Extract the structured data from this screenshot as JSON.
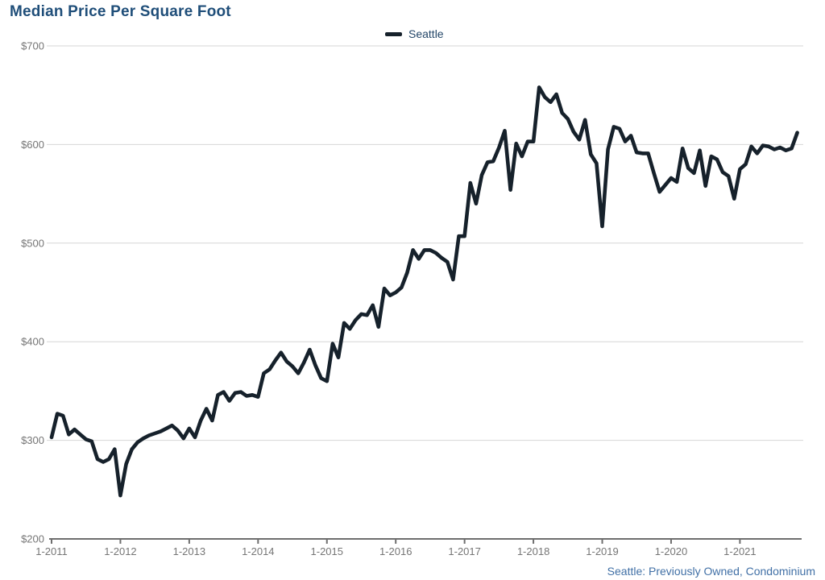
{
  "title": "Median Price Per Square Foot",
  "legend": {
    "label": "Seattle"
  },
  "source_note": "Seattle: Previously Owned, Condominium",
  "colors": {
    "title": "#1f4e79",
    "series_line": "#16212b",
    "gridline": "#d6d6d6",
    "axis": "#6e6e6e",
    "axis_label": "#757575",
    "source_note": "#4170a6",
    "background": "#ffffff"
  },
  "chart_data": {
    "type": "line",
    "title": "Median Price Per Square Foot",
    "frequency": "monthly",
    "x_start": "1-2011",
    "x_end": "11-2021",
    "x_tick_labels": [
      "1-2011",
      "1-2012",
      "1-2013",
      "1-2014",
      "1-2015",
      "1-2016",
      "1-2017",
      "1-2018",
      "1-2019",
      "1-2020",
      "1-2021"
    ],
    "y_tick_labels": [
      "$200",
      "$300",
      "$400",
      "$500",
      "$600",
      "$700"
    ],
    "ylim": [
      200,
      700
    ],
    "y_tick_step": 100,
    "grid": "horizontal",
    "legend_position": "top-center",
    "series": [
      {
        "name": "Seattle",
        "color": "#16212b",
        "values": [
          303,
          327,
          325,
          306,
          311,
          306,
          301,
          299,
          281,
          278,
          281,
          291,
          244,
          276,
          291,
          298,
          302,
          305,
          307,
          309,
          312,
          315,
          310,
          302,
          312,
          303,
          320,
          332,
          320,
          346,
          349,
          340,
          348,
          349,
          345,
          346,
          344,
          368,
          372,
          381,
          389,
          380,
          375,
          368,
          379,
          392,
          376,
          363,
          360,
          398,
          384,
          419,
          413,
          422,
          428,
          427,
          437,
          415,
          454,
          447,
          450,
          455,
          470,
          493,
          484,
          493,
          493,
          490,
          485,
          481,
          463,
          507,
          507,
          561,
          540,
          569,
          582,
          583,
          597,
          614,
          554,
          601,
          588,
          603,
          603,
          658,
          648,
          643,
          651,
          632,
          626,
          613,
          605,
          625,
          590,
          581,
          517,
          595,
          618,
          616,
          603,
          609,
          592,
          591,
          591,
          571,
          552,
          559,
          566,
          562,
          596,
          576,
          571,
          594,
          558,
          588,
          585,
          572,
          568,
          545,
          575,
          580,
          598,
          591,
          599,
          598,
          595,
          597,
          594,
          596,
          612
        ]
      }
    ]
  }
}
